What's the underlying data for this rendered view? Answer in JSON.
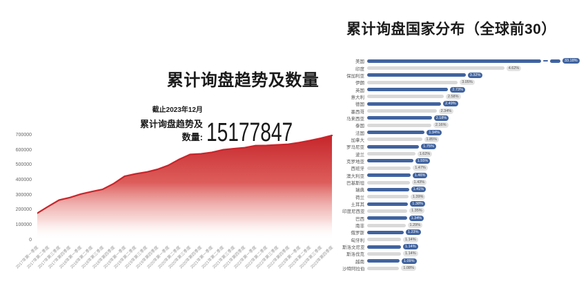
{
  "colors": {
    "area_red": "#c9252b",
    "bar_blue": "#40639f",
    "bar_gray": "#d9d9d9",
    "badge_gray_bg": "#e3e3e3",
    "badge_gray_text": "#555555",
    "tick_text": "#666666",
    "xlabel_text": "#999999"
  },
  "chart_data": [
    {
      "type": "area",
      "title": "累计询盘趋势及数量",
      "annotation": {
        "as_of": "截止2023年12月",
        "total_label": "累计询盘趋势及数量:",
        "total_value": "15177847"
      },
      "x": [
        "2017年第一季度",
        "2017年第二季度",
        "2017年第三季度",
        "2017年第四季度",
        "2018年第一季度",
        "2018年第二季度",
        "2018年第三季度",
        "2018年第四季度",
        "2019年第一季度",
        "2019年第二季度",
        "2019年第三季度",
        "2019年第四季度",
        "2020年第一季度",
        "2020年第二季度",
        "2020年第三季度",
        "2020年第四季度",
        "2021年第一季度",
        "2021年第二季度",
        "2021年第三季度",
        "2021年第四季度",
        "2022年第一季度",
        "2022年第二季度",
        "2022年第三季度",
        "2022年第四季度",
        "2023年第一季度",
        "2023年第二季度",
        "2023年第三季度",
        "2023年第四季度"
      ],
      "values": [
        180000,
        225000,
        268000,
        285000,
        308000,
        325000,
        340000,
        378000,
        427000,
        443000,
        455000,
        473000,
        500000,
        540000,
        573000,
        577000,
        587000,
        604000,
        612000,
        618000,
        632000,
        633000,
        637000,
        641000,
        652000,
        666000,
        682000,
        700000
      ],
      "ylim": [
        0,
        700000
      ],
      "yticks": [
        0,
        100000,
        200000,
        300000,
        400000,
        500000,
        600000,
        700000
      ],
      "grid": false,
      "legend": false
    },
    {
      "type": "bar",
      "orientation": "horizontal",
      "title": "累计询盘国家分布（全球前30）",
      "categories": [
        "美国",
        "印度",
        "保加利亚",
        "伊朗",
        "英国",
        "意大利",
        "德国",
        "墨西哥",
        "马来西亚",
        "泰国",
        "法国",
        "加拿大",
        "罗马尼亚",
        "波兰",
        "克罗地亚",
        "西班牙",
        "澳大利亚",
        "巴基斯坦",
        "瑞典",
        "荷兰",
        "土耳其",
        "印度尼西亚",
        "巴西",
        "南非",
        "俄罗斯",
        "匈牙利",
        "斯洛文尼亚",
        "斯洛伐克",
        "越南",
        "沙特阿拉伯"
      ],
      "values": [
        33.18,
        4.62,
        3.32,
        3.05,
        2.73,
        2.58,
        2.49,
        2.34,
        2.18,
        2.16,
        1.94,
        1.85,
        1.75,
        1.62,
        1.55,
        1.47,
        1.46,
        1.43,
        1.41,
        1.39,
        1.38,
        1.35,
        1.34,
        1.29,
        1.23,
        1.14,
        1.14,
        1.14,
        1.09,
        1.08
      ],
      "value_labels": [
        "33.18%",
        "4.62%",
        "3.32%",
        "3.05%",
        "2.73%",
        "2.58%",
        "2.49%",
        "2.34%",
        "2.18%",
        "2.16%",
        "1.94%",
        "1.85%",
        "1.75%",
        "1.62%",
        "1.55%",
        "1.47%",
        "1.46%",
        "1.43%",
        "1.41%",
        "1.39%",
        "1.38%",
        "1.35%",
        "1.34%",
        "1.29%",
        "1.23%",
        "1.14%",
        "1.14%",
        "1.14%",
        "1.09%",
        "1.08%"
      ],
      "axis_break_on_first_bar": true,
      "legend": false
    }
  ]
}
